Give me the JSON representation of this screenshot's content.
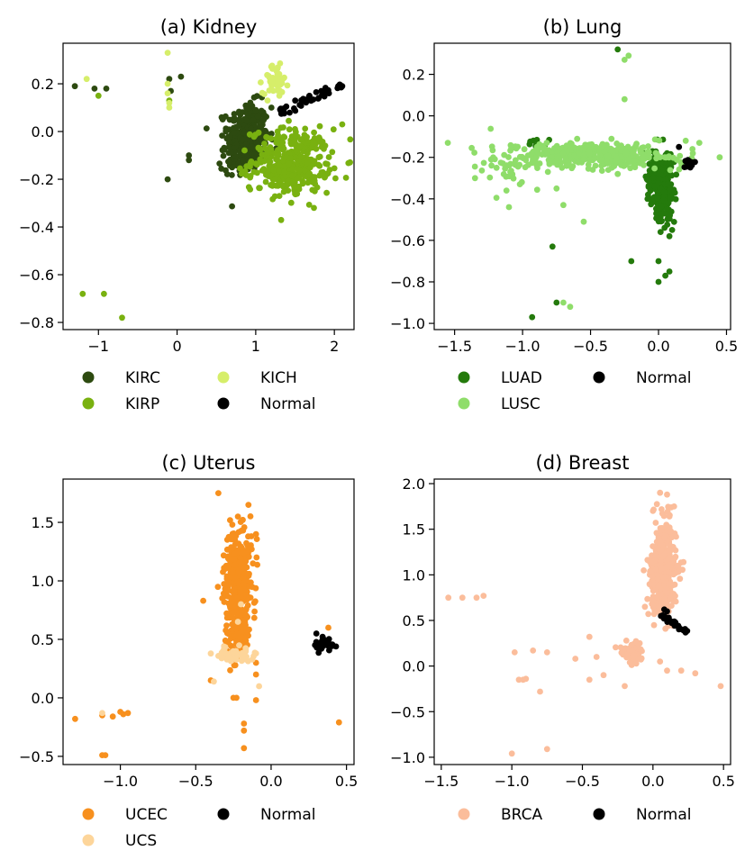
{
  "chart_data": [
    {
      "type": "scatter",
      "title": "(a) Kidney",
      "xlim": [
        -1.45,
        2.25
      ],
      "ylim": [
        -0.83,
        0.37
      ],
      "xticks": [
        -1,
        0,
        1,
        2
      ],
      "yticks": [
        -0.8,
        -0.6,
        -0.4,
        -0.2,
        0.0,
        0.2
      ],
      "xtick_labels": [
        "−1",
        "0",
        "1",
        "2"
      ],
      "ytick_labels": [
        "−0.8",
        "−0.6",
        "−0.4",
        "−0.2",
        "0.0",
        "0.2"
      ],
      "legend": {
        "placement": "below",
        "columns": 2
      },
      "series": [
        {
          "name": "KIRC",
          "color": "#2d4a10",
          "clusters": [
            {
              "cx": 0.9,
              "cy": -0.02,
              "sx": 0.13,
              "sy": 0.07,
              "n": 320
            },
            {
              "cx": 0.75,
              "cy": -0.12,
              "sx": 0.1,
              "sy": 0.03,
              "n": 40
            }
          ],
          "points": [
            [
              -1.3,
              0.19
            ],
            [
              -1.05,
              0.18
            ],
            [
              -0.9,
              0.18
            ],
            [
              0.05,
              0.23
            ],
            [
              -0.12,
              -0.2
            ],
            [
              0.15,
              -0.1
            ],
            [
              0.15,
              -0.12
            ],
            [
              -0.08,
              0.17
            ],
            [
              -0.1,
              0.22
            ],
            [
              1.2,
              0.1
            ],
            [
              1.0,
              0.09
            ],
            [
              0.7,
              -0.15
            ]
          ]
        },
        {
          "name": "KIRP",
          "color": "#79b110",
          "clusters": [
            {
              "cx": 1.45,
              "cy": -0.12,
              "sx": 0.25,
              "sy": 0.065,
              "n": 300
            },
            {
              "cx": 1.4,
              "cy": -0.2,
              "sx": 0.25,
              "sy": 0.04,
              "n": 60
            }
          ],
          "points": [
            [
              -1.0,
              0.15
            ],
            [
              -1.2,
              -0.68
            ],
            [
              -0.93,
              -0.68
            ],
            [
              -0.7,
              -0.78
            ],
            [
              2.1,
              0.03
            ],
            [
              1.75,
              -0.25
            ],
            [
              1.3,
              -0.27
            ],
            [
              1.5,
              -0.26
            ],
            [
              -0.1,
              0.13
            ]
          ]
        },
        {
          "name": "KICH",
          "color": "#d6ee6a",
          "clusters": [
            {
              "cx": 1.25,
              "cy": 0.22,
              "sx": 0.08,
              "sy": 0.03,
              "n": 45
            }
          ],
          "points": [
            [
              -1.15,
              0.22
            ],
            [
              -0.12,
              0.33
            ],
            [
              -0.12,
              0.2
            ],
            [
              -0.1,
              0.12
            ],
            [
              -0.12,
              0.16
            ],
            [
              -0.1,
              0.1
            ],
            [
              1.3,
              0.15
            ],
            [
              1.15,
              0.13
            ]
          ]
        },
        {
          "name": "Normal",
          "color": "#000000",
          "clusters": [
            {
              "line": [
                [
                  1.3,
                  0.08
                ],
                [
                  2.1,
                  0.19
                ]
              ],
              "spread": 0.01,
              "n": 45
            }
          ],
          "points": [
            [
              2.05,
              0.19
            ],
            [
              2.1,
              0.19
            ]
          ]
        }
      ]
    },
    {
      "type": "scatter",
      "title": "(b) Lung",
      "xlim": [
        -1.65,
        0.53
      ],
      "ylim": [
        -1.03,
        0.35
      ],
      "xticks": [
        -1.5,
        -1.0,
        -0.5,
        0.0,
        0.5
      ],
      "yticks": [
        -1.0,
        -0.8,
        -0.6,
        -0.4,
        -0.2,
        0.0,
        0.2
      ],
      "xtick_labels": [
        "−1.5",
        "−1.0",
        "−0.5",
        "0.0",
        "0.5"
      ],
      "ytick_labels": [
        "−1.0",
        "−0.8",
        "−0.6",
        "−0.4",
        "−0.2",
        "0.0",
        "0.2"
      ],
      "legend": {
        "placement": "below",
        "columns": 2
      },
      "series": [
        {
          "name": "LUAD",
          "color": "#247a0c",
          "clusters": [
            {
              "cx": 0.02,
              "cy": -0.3,
              "sx": 0.045,
              "sy": 0.06,
              "n": 320
            },
            {
              "cx": 0.03,
              "cy": -0.43,
              "sx": 0.04,
              "sy": 0.06,
              "n": 60
            },
            {
              "cx": -0.9,
              "cy": -0.13,
              "sx": 0.05,
              "sy": 0.015,
              "n": 8
            }
          ],
          "points": [
            [
              -0.93,
              -0.97
            ],
            [
              -0.75,
              -0.9
            ],
            [
              -0.78,
              -0.63
            ],
            [
              -0.2,
              -0.7
            ],
            [
              0.0,
              -0.7
            ],
            [
              0.05,
              -0.77
            ],
            [
              0.0,
              -0.8
            ],
            [
              0.08,
              -0.75
            ],
            [
              -0.3,
              0.32
            ],
            [
              0.1,
              -0.55
            ],
            [
              0.08,
              -0.58
            ],
            [
              -0.1,
              -0.18
            ]
          ]
        },
        {
          "name": "LUSC",
          "color": "#8fdd6a",
          "clusters": [
            {
              "cx": -0.5,
              "cy": -0.19,
              "sx": 0.28,
              "sy": 0.03,
              "n": 400
            },
            {
              "cx": -1.1,
              "cy": -0.25,
              "sx": 0.15,
              "sy": 0.05,
              "n": 40
            }
          ],
          "points": [
            [
              -1.55,
              -0.13
            ],
            [
              -1.35,
              -0.3
            ],
            [
              -1.1,
              -0.44
            ],
            [
              -0.7,
              -0.9
            ],
            [
              -0.65,
              -0.92
            ],
            [
              -0.75,
              -0.35
            ],
            [
              -0.55,
              -0.51
            ],
            [
              -0.7,
              -0.43
            ],
            [
              -0.25,
              0.27
            ],
            [
              -0.22,
              0.29
            ],
            [
              -0.25,
              0.08
            ],
            [
              0.2,
              -0.12
            ],
            [
              0.3,
              -0.13
            ],
            [
              0.45,
              -0.2
            ],
            [
              0.25,
              -0.16
            ],
            [
              -0.3,
              -0.28
            ]
          ]
        },
        {
          "name": "Normal",
          "color": "#000000",
          "clusters": [
            {
              "cx": 0.22,
              "cy": -0.23,
              "sx": 0.02,
              "sy": 0.012,
              "n": 18
            }
          ],
          "points": [
            [
              0.15,
              -0.15
            ]
          ]
        }
      ]
    },
    {
      "type": "scatter",
      "title": "(c) Uterus",
      "xlim": [
        -1.38,
        0.55
      ],
      "ylim": [
        -0.57,
        1.87
      ],
      "xticks": [
        -1.0,
        -0.5,
        0.0,
        0.5
      ],
      "yticks": [
        -0.5,
        0.0,
        0.5,
        1.0,
        1.5
      ],
      "xtick_labels": [
        "−1.0",
        "−0.5",
        "0.0",
        "0.5"
      ],
      "ytick_labels": [
        "−0.5",
        "0.0",
        "0.5",
        "1.0",
        "1.5"
      ],
      "legend": {
        "placement": "below",
        "columns": 2
      },
      "series": [
        {
          "name": "UCEC",
          "color": "#f7901e",
          "clusters": [
            {
              "cx": -0.22,
              "cy": 0.95,
              "sx": 0.045,
              "sy": 0.24,
              "n": 380
            },
            {
              "cx": -0.22,
              "cy": 0.55,
              "sx": 0.04,
              "sy": 0.1,
              "n": 60
            }
          ],
          "points": [
            [
              -1.3,
              -0.18
            ],
            [
              -1.12,
              -0.49
            ],
            [
              -1.1,
              -0.49
            ],
            [
              -1.12,
              -0.15
            ],
            [
              -1.05,
              -0.16
            ],
            [
              -1.0,
              -0.12
            ],
            [
              -0.98,
              -0.14
            ],
            [
              -0.95,
              -0.13
            ],
            [
              -0.45,
              0.83
            ],
            [
              -0.35,
              1.75
            ],
            [
              -0.15,
              1.65
            ],
            [
              -0.22,
              1.55
            ],
            [
              -0.4,
              0.15
            ],
            [
              -0.25,
              0.0
            ],
            [
              -0.23,
              0.0
            ],
            [
              -0.1,
              -0.02
            ],
            [
              -0.18,
              -0.22
            ],
            [
              -0.18,
              -0.28
            ],
            [
              -0.18,
              -0.43
            ],
            [
              -0.1,
              0.2
            ],
            [
              -0.1,
              0.3
            ],
            [
              0.45,
              -0.21
            ],
            [
              0.38,
              0.6
            ],
            [
              -0.1,
              1.4
            ]
          ]
        },
        {
          "name": "UCS",
          "color": "#fdd59a",
          "clusters": [
            {
              "cx": -0.25,
              "cy": 0.37,
              "sx": 0.07,
              "sy": 0.03,
              "n": 50
            }
          ],
          "points": [
            [
              -1.12,
              -0.13
            ],
            [
              -0.38,
              0.14
            ],
            [
              -0.1,
              0.38
            ],
            [
              -0.08,
              0.1
            ],
            [
              -0.2,
              0.8
            ],
            [
              -0.22,
              0.65
            ]
          ]
        },
        {
          "name": "Normal",
          "color": "#000000",
          "clusters": [
            {
              "cx": 0.36,
              "cy": 0.46,
              "sx": 0.035,
              "sy": 0.035,
              "n": 28
            }
          ],
          "points": [
            [
              0.3,
              0.55
            ]
          ]
        }
      ]
    },
    {
      "type": "scatter",
      "title": "(d) Breast",
      "xlim": [
        -1.55,
        0.55
      ],
      "ylim": [
        -1.08,
        2.05
      ],
      "xticks": [
        -1.5,
        -1.0,
        -0.5,
        0.0,
        0.5
      ],
      "yticks": [
        -1.0,
        -0.5,
        0.0,
        0.5,
        1.0,
        1.5,
        2.0
      ],
      "xtick_labels": [
        "−1.5",
        "−1.0",
        "−0.5",
        "0.0",
        "0.5"
      ],
      "ytick_labels": [
        "−1.0",
        "−0.5",
        "0.0",
        "0.5",
        "1.0",
        "1.5",
        "2.0"
      ],
      "legend": {
        "placement": "below",
        "columns": 2
      },
      "series": [
        {
          "name": "BRCA",
          "color": "#fbbd9b",
          "clusters": [
            {
              "cx": 0.07,
              "cy": 1.0,
              "sx": 0.045,
              "sy": 0.22,
              "n": 450
            },
            {
              "cx": -0.15,
              "cy": 0.15,
              "sx": 0.04,
              "sy": 0.06,
              "n": 70
            },
            {
              "cx": 0.08,
              "cy": 1.5,
              "sx": 0.04,
              "sy": 0.15,
              "n": 30
            }
          ],
          "points": [
            [
              -1.45,
              0.75
            ],
            [
              -1.35,
              0.75
            ],
            [
              -1.25,
              0.75
            ],
            [
              -1.2,
              0.77
            ],
            [
              -1.0,
              -0.96
            ],
            [
              -0.75,
              -0.91
            ],
            [
              -0.98,
              0.15
            ],
            [
              -0.95,
              -0.15
            ],
            [
              -0.92,
              -0.15
            ],
            [
              -0.9,
              -0.14
            ],
            [
              -0.85,
              0.17
            ],
            [
              -0.75,
              0.15
            ],
            [
              -0.8,
              -0.28
            ],
            [
              -0.55,
              0.08
            ],
            [
              -0.45,
              -0.15
            ],
            [
              -0.4,
              0.1
            ],
            [
              -0.35,
              -0.1
            ],
            [
              -0.2,
              -0.22
            ],
            [
              0.05,
              0.05
            ],
            [
              0.1,
              -0.05
            ],
            [
              0.2,
              -0.05
            ],
            [
              0.3,
              -0.08
            ],
            [
              0.48,
              -0.22
            ],
            [
              -0.45,
              0.32
            ],
            [
              0.05,
              1.9
            ],
            [
              0.1,
              1.88
            ],
            [
              0.0,
              1.7
            ],
            [
              0.15,
              1.75
            ]
          ]
        },
        {
          "name": "Normal",
          "color": "#000000",
          "clusters": [
            {
              "line": [
                [
                  0.07,
                  0.55
                ],
                [
                  0.22,
                  0.38
                ]
              ],
              "spread": 0.012,
              "n": 32
            }
          ],
          "points": [
            [
              0.08,
              0.62
            ],
            [
              0.1,
              0.6
            ]
          ]
        }
      ]
    }
  ]
}
